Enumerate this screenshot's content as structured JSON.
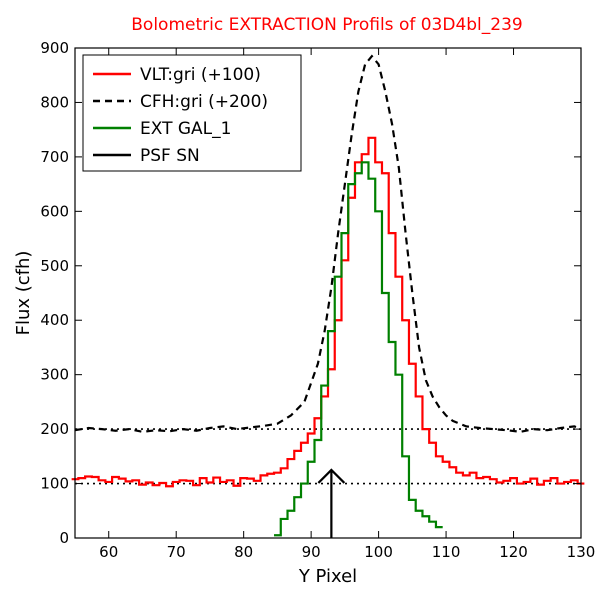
{
  "chart_data": {
    "type": "line",
    "title": "Bolometric EXTRACTION Profils of 03D4bl_239",
    "xlabel": "Y Pixel",
    "ylabel": "Flux (cfh)",
    "xlim": [
      55,
      130
    ],
    "ylim": [
      0,
      900
    ],
    "xticks": [
      60,
      70,
      80,
      90,
      100,
      110,
      120,
      130
    ],
    "yticks": [
      0,
      100,
      200,
      300,
      400,
      500,
      600,
      700,
      800,
      900
    ],
    "legend_position": "top-left",
    "reference_lines": [
      100,
      200
    ],
    "series": [
      {
        "name": "VLT:gri (+100)",
        "color": "#ff0000",
        "style": "steps",
        "x": [
          55,
          56,
          57,
          58,
          59,
          60,
          61,
          62,
          63,
          64,
          65,
          66,
          67,
          68,
          69,
          70,
          71,
          72,
          73,
          74,
          75,
          76,
          77,
          78,
          79,
          80,
          81,
          82,
          83,
          84,
          85,
          86,
          87,
          88,
          89,
          90,
          91,
          92,
          93,
          94,
          95,
          96,
          97,
          98,
          99,
          100,
          101,
          102,
          103,
          104,
          105,
          106,
          107,
          108,
          109,
          110,
          111,
          112,
          113,
          114,
          115,
          116,
          117,
          118,
          119,
          120,
          121,
          122,
          123,
          124,
          125,
          126,
          127,
          128,
          129,
          130
        ],
        "y": [
          108,
          110,
          113,
          112,
          106,
          103,
          112,
          109,
          104,
          106,
          98,
          102,
          97,
          101,
          95,
          103,
          106,
          105,
          97,
          110,
          102,
          111,
          103,
          106,
          96,
          110,
          109,
          105,
          115,
          118,
          120,
          128,
          145,
          160,
          175,
          192,
          220,
          260,
          310,
          400,
          510,
          625,
          690,
          705,
          735,
          690,
          670,
          560,
          480,
          400,
          320,
          260,
          200,
          175,
          150,
          140,
          130,
          120,
          115,
          120,
          110,
          112,
          108,
          102,
          105,
          110,
          100,
          103,
          109,
          98,
          105,
          110,
          100,
          103,
          106,
          100
        ]
      },
      {
        "name": "CFH:gri (+200)",
        "color": "#000000",
        "style": "dashed",
        "x": [
          55,
          57,
          59,
          61,
          63,
          65,
          67,
          69,
          71,
          73,
          75,
          77,
          79,
          81,
          83,
          85,
          87,
          89,
          90,
          91,
          92,
          93,
          94,
          95,
          96,
          97,
          98,
          99,
          100,
          101,
          102,
          103,
          104,
          105,
          106,
          107,
          108,
          109,
          110,
          111,
          112,
          113,
          115,
          117,
          119,
          121,
          123,
          125,
          127,
          129,
          130
        ],
        "y": [
          198,
          202,
          200,
          197,
          200,
          195,
          198,
          196,
          200,
          197,
          202,
          205,
          200,
          203,
          206,
          210,
          225,
          250,
          285,
          320,
          380,
          460,
          560,
          650,
          740,
          820,
          870,
          885,
          870,
          820,
          760,
          680,
          560,
          450,
          350,
          290,
          260,
          240,
          225,
          215,
          210,
          205,
          202,
          200,
          198,
          195,
          200,
          198,
          202,
          205,
          200
        ]
      },
      {
        "name": "EXT GAL_1",
        "color": "#008000",
        "style": "steps",
        "x": [
          85,
          86,
          87,
          88,
          89,
          90,
          91,
          92,
          93,
          94,
          95,
          96,
          97,
          98,
          99,
          100,
          101,
          102,
          103,
          104,
          105,
          106,
          107,
          108,
          109
        ],
        "y": [
          5,
          35,
          50,
          75,
          100,
          140,
          180,
          280,
          380,
          480,
          560,
          650,
          670,
          690,
          660,
          600,
          450,
          360,
          300,
          150,
          70,
          50,
          40,
          30,
          20
        ]
      },
      {
        "name": "PSF SN",
        "color": "#000000",
        "style": "arrow",
        "x": 93,
        "y_from": 0,
        "y_to": 125
      }
    ]
  }
}
